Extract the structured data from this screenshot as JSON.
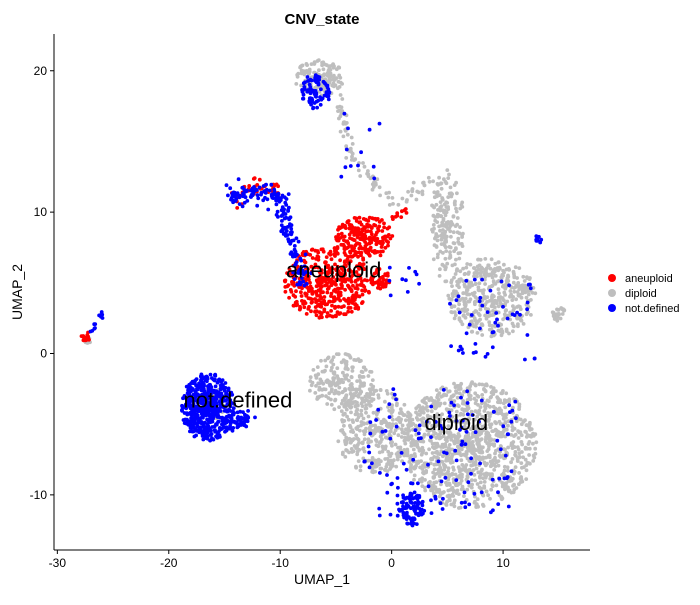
{
  "chart_data": {
    "type": "scatter",
    "title": "CNV_state",
    "xlabel": "UMAP_1",
    "ylabel": "UMAP_2",
    "xlim": [
      -30.3,
      17.8
    ],
    "ylim": [
      -13.9,
      22.6
    ],
    "xticks": [
      -30,
      -20,
      -10,
      0,
      10
    ],
    "yticks": [
      -10,
      0,
      10,
      20
    ],
    "grid": false,
    "legend_position": "right",
    "series": [
      {
        "name": "aneuploid",
        "color": "#FF0000"
      },
      {
        "name": "diploid",
        "color": "#BEBEBE"
      },
      {
        "name": "not.defined",
        "color": "#0000FF"
      }
    ],
    "cluster_labels": [
      {
        "text": "aneuploid",
        "x": -5.2,
        "y": 5.8
      },
      {
        "text": "not.defined",
        "x": -13.8,
        "y": -3.4
      },
      {
        "text": "diploid",
        "x": 5.8,
        "y": -5.0
      }
    ],
    "clusters": [
      {
        "series": "diploid",
        "kind": "blob",
        "cx": 7.0,
        "cy": -6.5,
        "rx": 6.0,
        "ry": 4.5,
        "n": 1100
      },
      {
        "series": "diploid",
        "kind": "blob",
        "cx": -1.5,
        "cy": -5.5,
        "rx": 3.5,
        "ry": 3.0,
        "n": 350
      },
      {
        "series": "diploid",
        "kind": "blob",
        "cx": -4.5,
        "cy": -2.0,
        "rx": 3.0,
        "ry": 2.0,
        "n": 200
      },
      {
        "series": "diploid",
        "kind": "blob",
        "cx": 9.0,
        "cy": 4.0,
        "rx": 4.0,
        "ry": 2.8,
        "n": 420
      },
      {
        "series": "diploid",
        "kind": "blob",
        "cx": 5.0,
        "cy": 9.0,
        "rx": 1.5,
        "ry": 4.0,
        "n": 180
      },
      {
        "series": "diploid",
        "kind": "blob",
        "cx": -6.5,
        "cy": 19.5,
        "rx": 2.2,
        "ry": 1.3,
        "n": 140
      },
      {
        "series": "diploid",
        "kind": "path",
        "pts": [
          [
            -4.8,
            18.0
          ],
          [
            -3.5,
            14.0
          ],
          [
            -1.5,
            12.0
          ],
          [
            0.5,
            10.5
          ],
          [
            4.0,
            12.5
          ]
        ],
        "spread": 0.5,
        "n": 90
      },
      {
        "series": "diploid",
        "kind": "blob",
        "cx": 15.0,
        "cy": 2.8,
        "rx": 0.7,
        "ry": 0.5,
        "n": 25
      },
      {
        "series": "diploid",
        "kind": "blob",
        "cx": -16.0,
        "cy": -3.5,
        "rx": 1.5,
        "ry": 1.2,
        "n": 30
      },
      {
        "series": "diploid",
        "kind": "blob",
        "cx": -27.2,
        "cy": 0.8,
        "rx": 0.4,
        "ry": 0.3,
        "n": 6
      },
      {
        "series": "aneuploid",
        "kind": "blob",
        "cx": -5.8,
        "cy": 5.0,
        "rx": 4.0,
        "ry": 2.6,
        "n": 420
      },
      {
        "series": "aneuploid",
        "kind": "blob",
        "cx": -2.5,
        "cy": 8.2,
        "rx": 2.6,
        "ry": 1.6,
        "n": 220
      },
      {
        "series": "aneuploid",
        "kind": "blob",
        "cx": -1.0,
        "cy": 5.2,
        "rx": 0.9,
        "ry": 0.8,
        "n": 45
      },
      {
        "series": "aneuploid",
        "kind": "path",
        "pts": [
          [
            -14.0,
            11.0
          ],
          [
            -12.0,
            11.8
          ],
          [
            -10.0,
            11.6
          ]
        ],
        "spread": 0.6,
        "n": 45
      },
      {
        "series": "aneuploid",
        "kind": "blob",
        "cx": -27.4,
        "cy": 1.2,
        "rx": 0.45,
        "ry": 0.35,
        "n": 14
      },
      {
        "series": "aneuploid",
        "kind": "path",
        "pts": [
          [
            0.0,
            9.5
          ],
          [
            1.5,
            10.3
          ]
        ],
        "spread": 0.25,
        "n": 10
      },
      {
        "series": "not.defined",
        "kind": "blob",
        "cx": -16.5,
        "cy": -3.8,
        "rx": 2.4,
        "ry": 2.4,
        "n": 520
      },
      {
        "series": "not.defined",
        "kind": "path",
        "pts": [
          [
            -14.5,
            -5.0
          ],
          [
            -13.0,
            -4.5
          ]
        ],
        "spread": 0.6,
        "n": 50
      },
      {
        "series": "not.defined",
        "kind": "path",
        "pts": [
          [
            -14.5,
            11.0
          ],
          [
            -12.0,
            11.5
          ],
          [
            -10.0,
            11.0
          ],
          [
            -9.5,
            9.0
          ],
          [
            -8.5,
            7.0
          ],
          [
            -8.0,
            5.0
          ]
        ],
        "spread": 0.7,
        "n": 190
      },
      {
        "series": "not.defined",
        "kind": "blob",
        "cx": -6.8,
        "cy": 18.5,
        "rx": 1.3,
        "ry": 1.3,
        "n": 90
      },
      {
        "series": "not.defined",
        "kind": "blob",
        "cx": 1.8,
        "cy": -11.0,
        "rx": 1.2,
        "ry": 1.2,
        "n": 80
      },
      {
        "series": "not.defined",
        "kind": "scatter",
        "cx": 4.5,
        "cy": -7.0,
        "rx": 7.0,
        "ry": 4.5,
        "n": 130
      },
      {
        "series": "not.defined",
        "kind": "scatter",
        "cx": 9.0,
        "cy": 2.5,
        "rx": 4.0,
        "ry": 3.0,
        "n": 50
      },
      {
        "series": "not.defined",
        "kind": "blob",
        "cx": 13.2,
        "cy": 8.1,
        "rx": 0.3,
        "ry": 0.3,
        "n": 10
      },
      {
        "series": "not.defined",
        "kind": "path",
        "pts": [
          [
            -27.0,
            1.4
          ],
          [
            -26.0,
            2.8
          ]
        ],
        "spread": 0.2,
        "n": 12
      },
      {
        "series": "not.defined",
        "kind": "scatter",
        "cx": -3.0,
        "cy": 14.5,
        "rx": 2.0,
        "ry": 2.5,
        "n": 12
      },
      {
        "series": "not.defined",
        "kind": "scatter",
        "cx": 1.0,
        "cy": 5.0,
        "rx": 1.5,
        "ry": 1.5,
        "n": 10
      }
    ]
  }
}
